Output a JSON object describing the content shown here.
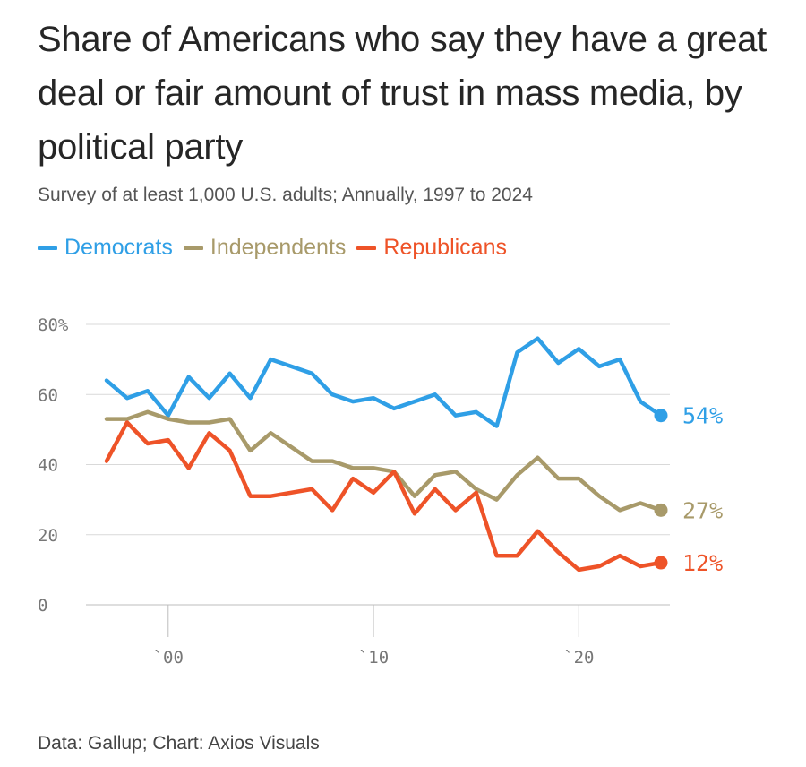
{
  "title": "Share of Americans who say they have a great deal or fair amount of trust in mass media, by political party",
  "subtitle": "Survey of at least 1,000 U.S. adults; Annually, 1997 to 2024",
  "source": "Data: Gallup; Chart: Axios Visuals",
  "chart_data": {
    "type": "line",
    "title": "Share of Americans who say they have a great deal or fair amount of trust in mass media, by political party",
    "subtitle": "Survey of at least 1,000 U.S. adults; Annually, 1997 to 2024",
    "xlabel": "",
    "ylabel": "",
    "xlim": [
      1997,
      2024
    ],
    "ylim": [
      0,
      80
    ],
    "y_ticks": [
      0,
      20,
      40,
      60,
      80
    ],
    "y_tick_labels": [
      "0",
      "20",
      "40",
      "60",
      "80%"
    ],
    "x_ticks": [
      2000,
      2010,
      2020
    ],
    "x_tick_labels": [
      "`00",
      "`10",
      "`20"
    ],
    "grid": "horizontal",
    "legend_position": "top-left",
    "x": [
      1997,
      1998,
      1999,
      2000,
      2001,
      2002,
      2003,
      2004,
      2005,
      2007,
      2008,
      2009,
      2010,
      2011,
      2012,
      2013,
      2014,
      2015,
      2016,
      2017,
      2018,
      2019,
      2020,
      2021,
      2022,
      2023,
      2024
    ],
    "series": [
      {
        "name": "Democrats",
        "color": "#2f9fe6",
        "end_label": "54%",
        "values": [
          64,
          59,
          61,
          54,
          65,
          59,
          66,
          59,
          70,
          66,
          60,
          58,
          59,
          56,
          58,
          60,
          54,
          55,
          51,
          72,
          76,
          69,
          73,
          68,
          70,
          58,
          54
        ]
      },
      {
        "name": "Independents",
        "color": "#a89a6a",
        "end_label": "27%",
        "values": [
          53,
          53,
          55,
          53,
          52,
          52,
          53,
          44,
          49,
          41,
          41,
          39,
          39,
          38,
          31,
          37,
          38,
          33,
          30,
          37,
          42,
          36,
          36,
          31,
          27,
          29,
          27
        ]
      },
      {
        "name": "Republicans",
        "color": "#ee5328",
        "end_label": "12%",
        "values": [
          41,
          52,
          46,
          47,
          39,
          49,
          44,
          31,
          31,
          33,
          27,
          36,
          32,
          38,
          26,
          33,
          27,
          32,
          14,
          14,
          21,
          15,
          10,
          11,
          14,
          11,
          12
        ]
      }
    ]
  }
}
